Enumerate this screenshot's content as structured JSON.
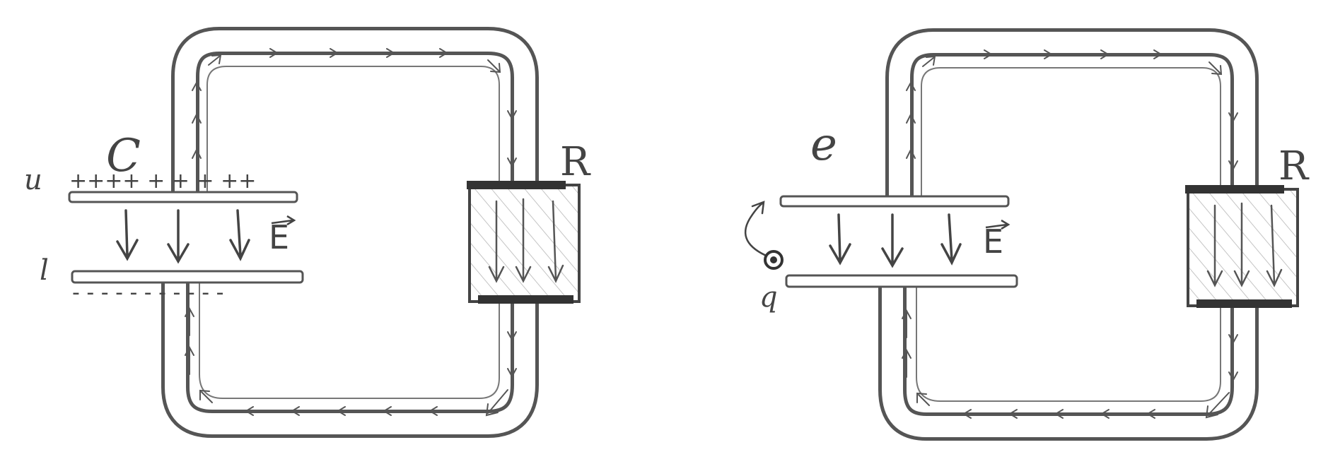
{
  "colors": {
    "ink": "#444444",
    "wire_outline": "#555555",
    "hatch": "#bbbbbb",
    "background": "#ffffff"
  },
  "left_circuit": {
    "capacitor_label": "C",
    "resistor_label": "R",
    "top_plate_label": "u",
    "bottom_plate_label": "l",
    "top_plate_charges": "++++ + + + ++",
    "bottom_plate_charges": "- - - - - - - - - - -",
    "field_label": "E"
  },
  "right_circuit": {
    "capacitor_label": "e",
    "resistor_label": "R",
    "charge_label": "q",
    "field_label": "E"
  }
}
